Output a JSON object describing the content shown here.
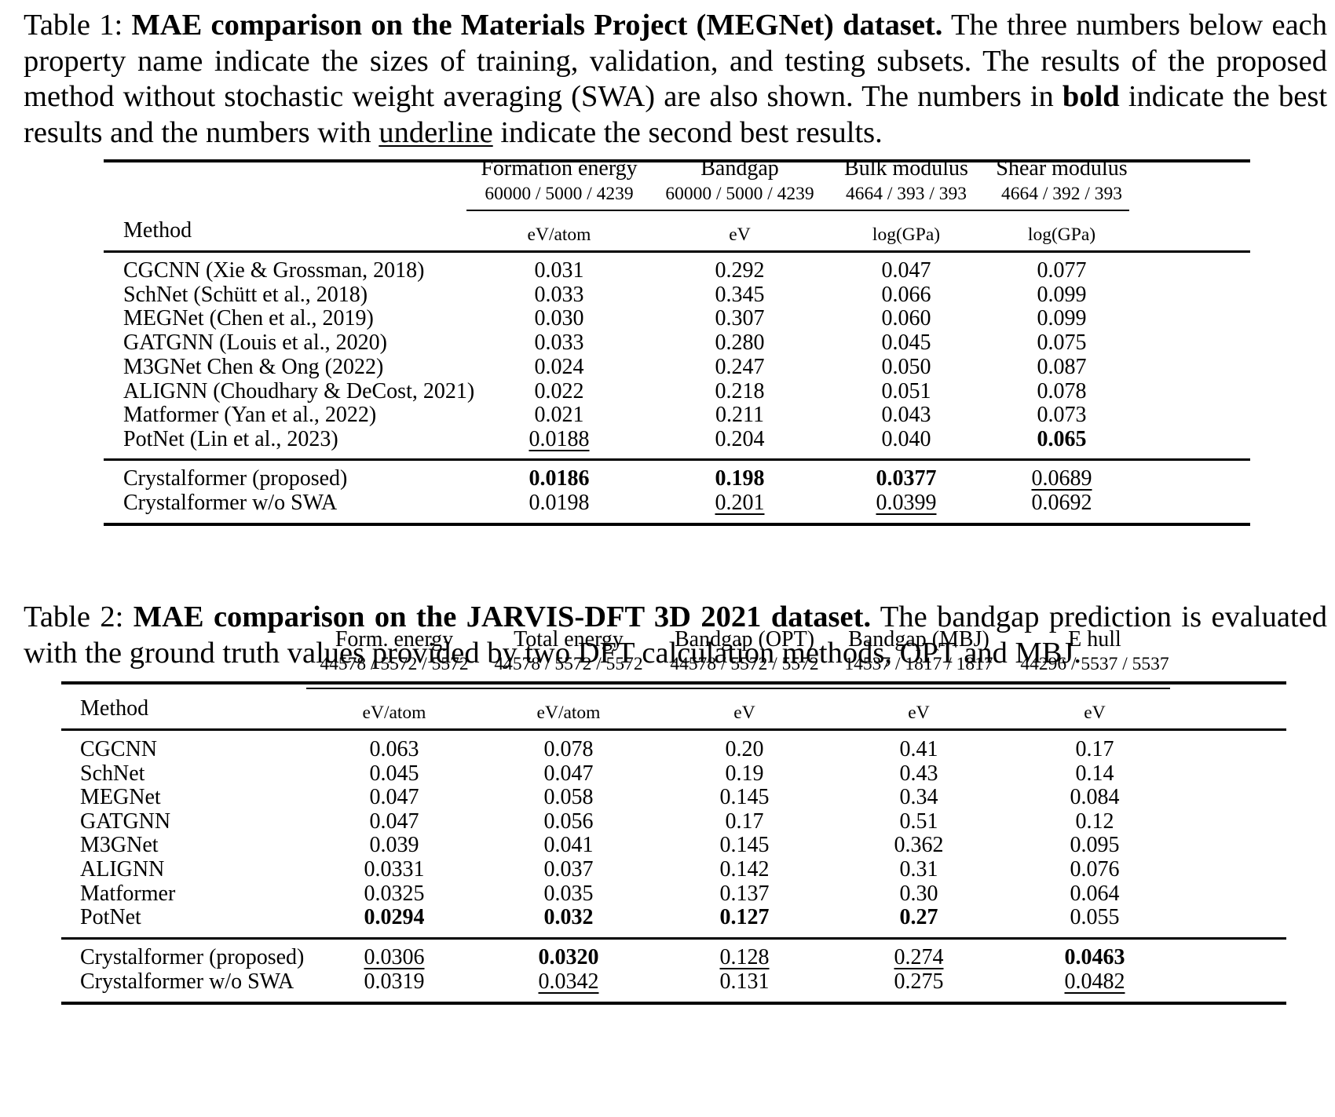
{
  "table1": {
    "caption_prefix": "Table 1: ",
    "caption_bold": "MAE comparison on the Materials Project (MEGNet) dataset.",
    "caption_rest": " The three numbers below each property name indicate the sizes of training, validation, and testing subsets. The results of the proposed method without stochastic weight averaging (SWA) are also shown. The numbers in ",
    "caption_bold_word": "bold",
    "caption_mid": " indicate the best results and the numbers with ",
    "caption_underline_word": "underline",
    "caption_end": " indicate the second best results.",
    "method_header": "Method",
    "columns": [
      {
        "name": "Formation energy",
        "sizes": "60000 / 5000 / 4239",
        "unit": "eV/atom"
      },
      {
        "name": "Bandgap",
        "sizes": "60000 / 5000 / 4239",
        "unit": "eV"
      },
      {
        "name": "Bulk modulus",
        "sizes": "4664 / 393 / 393",
        "unit": "log(GPa)"
      },
      {
        "name": "Shear modulus",
        "sizes": "4664 / 392 / 393",
        "unit": "log(GPa)"
      }
    ],
    "rows": [
      {
        "method": "CGCNN (Xie & Grossman, 2018)",
        "values": [
          "0.031",
          "0.292",
          "0.047",
          "0.077"
        ],
        "style": [
          "",
          "",
          "",
          ""
        ]
      },
      {
        "method": "SchNet (Schütt et al., 2018)",
        "values": [
          "0.033",
          "0.345",
          "0.066",
          "0.099"
        ],
        "style": [
          "",
          "",
          "",
          ""
        ]
      },
      {
        "method": "MEGNet (Chen et al., 2019)",
        "values": [
          "0.030",
          "0.307",
          "0.060",
          "0.099"
        ],
        "style": [
          "",
          "",
          "",
          ""
        ]
      },
      {
        "method": "GATGNN (Louis et al., 2020)",
        "values": [
          "0.033",
          "0.280",
          "0.045",
          "0.075"
        ],
        "style": [
          "",
          "",
          "",
          ""
        ]
      },
      {
        "method": "M3GNet Chen & Ong (2022)",
        "values": [
          "0.024",
          "0.247",
          "0.050",
          "0.087"
        ],
        "style": [
          "",
          "",
          "",
          ""
        ]
      },
      {
        "method": "ALIGNN (Choudhary & DeCost, 2021)",
        "values": [
          "0.022",
          "0.218",
          "0.051",
          "0.078"
        ],
        "style": [
          "",
          "",
          "",
          ""
        ]
      },
      {
        "method": "Matformer (Yan et al., 2022)",
        "values": [
          "0.021",
          "0.211",
          "0.043",
          "0.073"
        ],
        "style": [
          "",
          "",
          "",
          ""
        ]
      },
      {
        "method": "PotNet (Lin et al., 2023)",
        "values": [
          "0.0188",
          "0.204",
          "0.040",
          "0.065"
        ],
        "style": [
          "ul",
          "",
          "",
          "bold"
        ]
      },
      {
        "method": "Crystalformer (proposed)",
        "values": [
          "0.0186",
          "0.198",
          "0.0377",
          "0.0689"
        ],
        "style": [
          "bold",
          "bold",
          "bold",
          "ul"
        ]
      },
      {
        "method": "Crystalformer w/o SWA",
        "values": [
          "0.0198",
          "0.201",
          "0.0399",
          "0.0692"
        ],
        "style": [
          "",
          "ul",
          "ul",
          ""
        ]
      }
    ]
  },
  "table2": {
    "caption_prefix": "Table 2: ",
    "caption_bold": "MAE comparison on the JARVIS-DFT 3D 2021 dataset.",
    "caption_rest": " The bandgap prediction is evaluated with the ground truth values provided by two DFT calculation methods, OPT and MBJ.",
    "method_header": "Method",
    "columns": [
      {
        "name": "Form. energy",
        "sizes": "44578 / 5572 / 5572",
        "unit": "eV/atom"
      },
      {
        "name": "Total energy",
        "sizes": "44578 / 5572 / 5572",
        "unit": "eV/atom"
      },
      {
        "name": "Bandgap (OPT)",
        "sizes": "44578 / 5572 / 5572",
        "unit": "eV"
      },
      {
        "name": "Bandgap (MBJ)",
        "sizes": "14537 / 1817 / 1817",
        "unit": "eV"
      },
      {
        "name": "E hull",
        "sizes": "44296 / 5537 / 5537",
        "unit": "eV"
      }
    ],
    "rows": [
      {
        "method": "CGCNN",
        "values": [
          "0.063",
          "0.078",
          "0.20",
          "0.41",
          "0.17"
        ],
        "style": [
          "",
          "",
          "",
          "",
          ""
        ]
      },
      {
        "method": "SchNet",
        "values": [
          "0.045",
          "0.047",
          "0.19",
          "0.43",
          "0.14"
        ],
        "style": [
          "",
          "",
          "",
          "",
          ""
        ]
      },
      {
        "method": "MEGNet",
        "values": [
          "0.047",
          "0.058",
          "0.145",
          "0.34",
          "0.084"
        ],
        "style": [
          "",
          "",
          "",
          "",
          ""
        ]
      },
      {
        "method": "GATGNN",
        "values": [
          "0.047",
          "0.056",
          "0.17",
          "0.51",
          "0.12"
        ],
        "style": [
          "",
          "",
          "",
          "",
          ""
        ]
      },
      {
        "method": "M3GNet",
        "values": [
          "0.039",
          "0.041",
          "0.145",
          "0.362",
          "0.095"
        ],
        "style": [
          "",
          "",
          "",
          "",
          ""
        ]
      },
      {
        "method": "ALIGNN",
        "values": [
          "0.0331",
          "0.037",
          "0.142",
          "0.31",
          "0.076"
        ],
        "style": [
          "",
          "",
          "",
          "",
          ""
        ]
      },
      {
        "method": "Matformer",
        "values": [
          "0.0325",
          "0.035",
          "0.137",
          "0.30",
          "0.064"
        ],
        "style": [
          "",
          "",
          "",
          "",
          ""
        ]
      },
      {
        "method": "PotNet",
        "values": [
          "0.0294",
          "0.032",
          "0.127",
          "0.27",
          "0.055"
        ],
        "style": [
          "bold",
          "bold",
          "bold",
          "bold",
          ""
        ]
      },
      {
        "method": "Crystalformer (proposed)",
        "values": [
          "0.0306",
          "0.0320",
          "0.128",
          "0.274",
          "0.0463"
        ],
        "style": [
          "ul",
          "bold",
          "ul",
          "ul",
          "bold"
        ]
      },
      {
        "method": "Crystalformer w/o SWA",
        "values": [
          "0.0319",
          "0.0342",
          "0.131",
          "0.275",
          "0.0482"
        ],
        "style": [
          "",
          "ul",
          "",
          "",
          "ul"
        ]
      }
    ]
  }
}
